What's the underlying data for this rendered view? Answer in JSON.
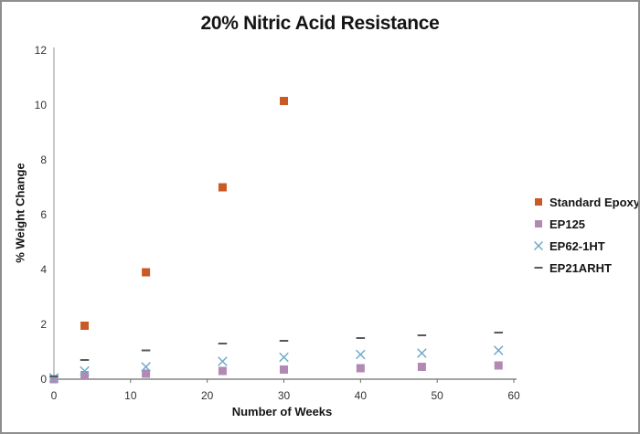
{
  "colors": {
    "standard_epoxy": "#C95A25",
    "ep125": "#B289B2",
    "ep62_1ht": "#6FA9C9",
    "ep21arht": "#595959",
    "y_axis_line": "#A9AAB4",
    "x_axis_line": "#6E6E6E",
    "tick_label": "#333333",
    "frame_border": "#8E8E8E"
  },
  "chart_data": {
    "type": "scatter",
    "title": "20% Nitric Acid Resistance",
    "xlabel": "Number of Weeks",
    "ylabel": "% Weight Change",
    "xlim": [
      0,
      60
    ],
    "ylim": [
      0,
      12
    ],
    "x_ticks": [
      0,
      10,
      20,
      30,
      40,
      50,
      60
    ],
    "y_ticks": [
      0,
      2,
      4,
      6,
      8,
      10,
      12
    ],
    "grid": false,
    "legend_position": "right",
    "series": [
      {
        "name": "Standard Epoxy",
        "marker": "square",
        "color": "#C95A25",
        "points": [
          [
            0,
            0
          ],
          [
            4,
            1.95
          ],
          [
            12,
            3.9
          ],
          [
            22,
            7.0
          ],
          [
            30,
            10.15
          ]
        ]
      },
      {
        "name": "EP125",
        "marker": "square",
        "color": "#B289B2",
        "points": [
          [
            0,
            0
          ],
          [
            4,
            0.15
          ],
          [
            12,
            0.2
          ],
          [
            22,
            0.3
          ],
          [
            30,
            0.35
          ],
          [
            40,
            0.4
          ],
          [
            48,
            0.45
          ],
          [
            58,
            0.5
          ]
        ]
      },
      {
        "name": "EP62-1HT",
        "marker": "x",
        "color": "#6FA9C9",
        "points": [
          [
            0,
            0.05
          ],
          [
            4,
            0.3
          ],
          [
            12,
            0.45
          ],
          [
            22,
            0.65
          ],
          [
            30,
            0.8
          ],
          [
            40,
            0.9
          ],
          [
            48,
            0.95
          ],
          [
            58,
            1.05
          ]
        ]
      },
      {
        "name": "EP21ARHT",
        "marker": "dash",
        "color": "#595959",
        "points": [
          [
            0,
            0.1
          ],
          [
            4,
            0.7
          ],
          [
            12,
            1.05
          ],
          [
            22,
            1.3
          ],
          [
            30,
            1.4
          ],
          [
            40,
            1.5
          ],
          [
            48,
            1.6
          ],
          [
            58,
            1.7
          ]
        ]
      }
    ]
  }
}
